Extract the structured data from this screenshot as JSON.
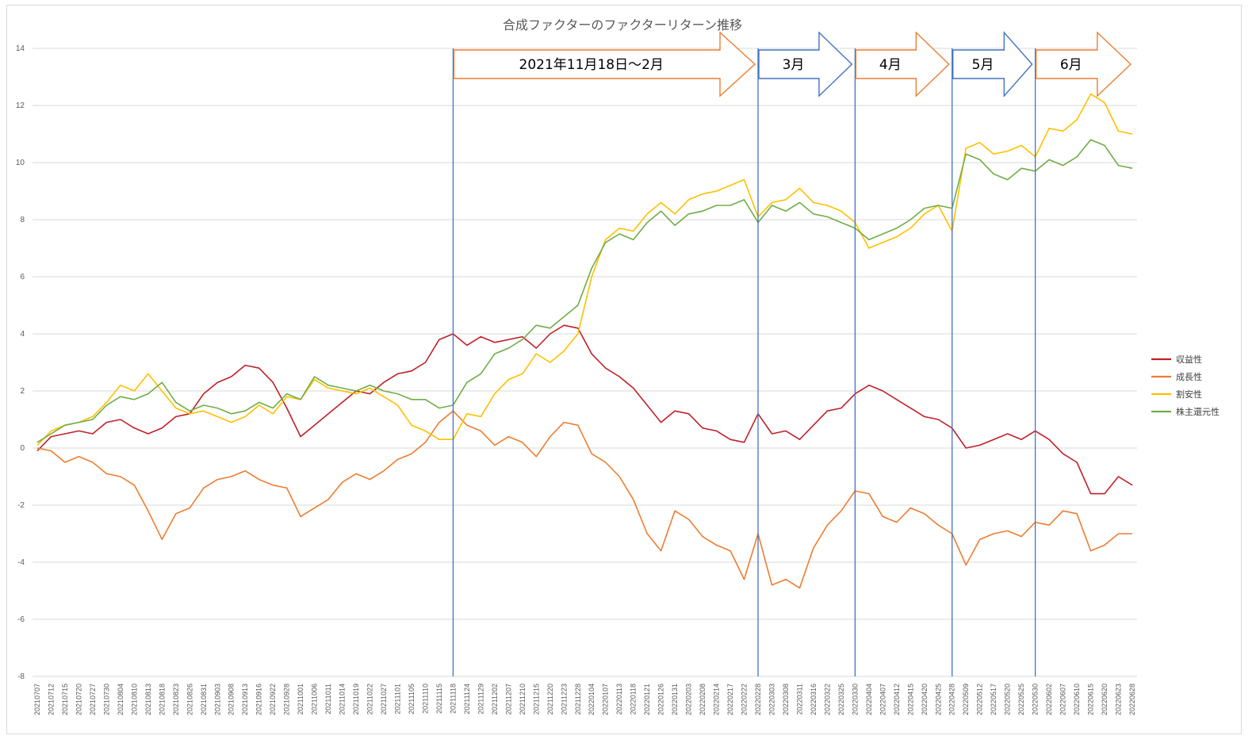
{
  "chart_data": {
    "type": "line",
    "title": "合成ファクターのファクターリターン推移",
    "xlabel": "",
    "ylabel": "",
    "ylim": [
      -8,
      14
    ],
    "yticks": [
      "14",
      "12",
      "10",
      "8",
      "6",
      "4",
      "2",
      "0",
      "-2",
      "-4",
      "-6",
      "-8"
    ],
    "grid": true,
    "legend_position": "right",
    "x_tick_labels": [
      "20210707",
      "20210712",
      "20210715",
      "20210720",
      "20210727",
      "20210730",
      "20210804",
      "20210810",
      "20210813",
      "20210818",
      "20210823",
      "20210826",
      "20210831",
      "20210903",
      "20210908",
      "20210913",
      "20210916",
      "20210922",
      "20210928",
      "20211001",
      "20211006",
      "20211011",
      "20211014",
      "20211019",
      "20211022",
      "20211027",
      "20211101",
      "20211105",
      "20211110",
      "20211115",
      "20211118",
      "20211124",
      "20211129",
      "20211202",
      "20211207",
      "20211210",
      "20211215",
      "20211220",
      "20211223",
      "20211228",
      "20220104",
      "20220107",
      "20220113",
      "20220118",
      "20220121",
      "20220126",
      "20220131",
      "20220203",
      "20220208",
      "20220214",
      "20220217",
      "20220222",
      "20220228",
      "20220303",
      "20220308",
      "20220311",
      "20220316",
      "20220322",
      "20220325",
      "20220330",
      "20220404",
      "20220407",
      "20220412",
      "20220415",
      "20220420",
      "20220425",
      "20220428",
      "20220509",
      "20220512",
      "20220517",
      "20220520",
      "20220525",
      "20220530",
      "20220602",
      "20220607",
      "20220610",
      "20220615",
      "20220620",
      "20220623",
      "20220628"
    ],
    "series": [
      {
        "name": "収益性",
        "color": "#c0202a",
        "values": [
          -0.1,
          0.4,
          0.5,
          0.6,
          0.5,
          0.9,
          1.0,
          0.7,
          0.5,
          0.7,
          1.1,
          1.2,
          1.9,
          2.3,
          2.5,
          2.9,
          2.8,
          2.3,
          1.4,
          0.4,
          0.8,
          1.2,
          1.6,
          2.0,
          1.9,
          2.3,
          2.6,
          2.7,
          3.0,
          3.8,
          4.0,
          3.6,
          3.9,
          3.7,
          3.8,
          3.9,
          3.5,
          4.0,
          4.3,
          4.2,
          3.3,
          2.8,
          2.5,
          2.1,
          1.5,
          0.9,
          1.3,
          1.2,
          0.7,
          0.6,
          0.3,
          0.2,
          1.2,
          0.5,
          0.6,
          0.3,
          0.8,
          1.3,
          1.4,
          1.9,
          2.2,
          2.0,
          1.7,
          1.4,
          1.1,
          1.0,
          0.7,
          0.0,
          0.1,
          0.3,
          0.5,
          0.3,
          0.6,
          0.3,
          -0.2,
          -0.5,
          -1.6,
          -1.6,
          -1.0,
          -1.3
        ]
      },
      {
        "name": "成長性",
        "color": "#ed7d31",
        "values": [
          0.0,
          -0.1,
          -0.5,
          -0.3,
          -0.5,
          -0.9,
          -1.0,
          -1.3,
          -2.2,
          -3.2,
          -2.3,
          -2.1,
          -1.4,
          -1.1,
          -1.0,
          -0.8,
          -1.1,
          -1.3,
          -1.4,
          -2.4,
          -2.1,
          -1.8,
          -1.2,
          -0.9,
          -1.1,
          -0.8,
          -0.4,
          -0.2,
          0.2,
          0.9,
          1.3,
          0.8,
          0.6,
          0.1,
          0.4,
          0.2,
          -0.3,
          0.4,
          0.9,
          0.8,
          -0.2,
          -0.5,
          -1.0,
          -1.8,
          -3.0,
          -3.6,
          -2.2,
          -2.5,
          -3.1,
          -3.4,
          -3.6,
          -4.6,
          -3.0,
          -4.8,
          -4.6,
          -4.9,
          -3.5,
          -2.7,
          -2.2,
          -1.5,
          -1.6,
          -2.4,
          -2.6,
          -2.1,
          -2.3,
          -2.7,
          -3.0,
          -4.1,
          -3.2,
          -3.0,
          -2.9,
          -3.1,
          -2.6,
          -2.7,
          -2.2,
          -2.3,
          -3.6,
          -3.4,
          -3.0,
          -3.0
        ]
      },
      {
        "name": "割安性",
        "color": "#ffc000",
        "values": [
          0.1,
          0.6,
          0.8,
          0.9,
          1.1,
          1.6,
          2.2,
          2.0,
          2.6,
          2.0,
          1.4,
          1.2,
          1.3,
          1.1,
          0.9,
          1.1,
          1.5,
          1.2,
          1.8,
          1.7,
          2.4,
          2.1,
          2.0,
          1.9,
          2.1,
          1.8,
          1.5,
          0.8,
          0.6,
          0.3,
          0.3,
          1.2,
          1.1,
          1.9,
          2.4,
          2.6,
          3.3,
          3.0,
          3.4,
          4.0,
          6.0,
          7.3,
          7.7,
          7.6,
          8.2,
          8.6,
          8.2,
          8.7,
          8.9,
          9.0,
          9.2,
          9.4,
          8.1,
          8.6,
          8.7,
          9.1,
          8.6,
          8.5,
          8.3,
          7.9,
          7.0,
          7.2,
          7.4,
          7.7,
          8.2,
          8.5,
          7.6,
          10.5,
          10.7,
          10.3,
          10.4,
          10.6,
          10.2,
          11.2,
          11.1,
          11.5,
          12.4,
          12.1,
          11.1,
          11.0
        ]
      },
      {
        "name": "株主還元性",
        "color": "#70ad47",
        "values": [
          0.2,
          0.5,
          0.8,
          0.9,
          1.0,
          1.5,
          1.8,
          1.7,
          1.9,
          2.3,
          1.6,
          1.3,
          1.5,
          1.4,
          1.2,
          1.3,
          1.6,
          1.4,
          1.9,
          1.7,
          2.5,
          2.2,
          2.1,
          2.0,
          2.2,
          2.0,
          1.9,
          1.7,
          1.7,
          1.4,
          1.5,
          2.3,
          2.6,
          3.3,
          3.5,
          3.8,
          4.3,
          4.2,
          4.6,
          5.0,
          6.3,
          7.2,
          7.5,
          7.3,
          7.9,
          8.3,
          7.8,
          8.2,
          8.3,
          8.5,
          8.5,
          8.7,
          7.9,
          8.5,
          8.3,
          8.6,
          8.2,
          8.1,
          7.9,
          7.7,
          7.3,
          7.5,
          7.7,
          8.0,
          8.4,
          8.5,
          8.4,
          10.3,
          10.1,
          9.6,
          9.4,
          9.8,
          9.7,
          10.1,
          9.9,
          10.2,
          10.8,
          10.6,
          9.9,
          9.8
        ]
      }
    ],
    "period_markers": [
      {
        "label": "2021年11月18日～2月",
        "date": "20211118",
        "outline": "#ed7d31"
      },
      {
        "label": "3月",
        "date": "20220228",
        "outline": "#4472c4"
      },
      {
        "label": "4月",
        "date": "20220330",
        "outline": "#ed7d31"
      },
      {
        "label": "5月",
        "date": "20220428",
        "outline": "#4472c4"
      },
      {
        "label": "6月",
        "date": "20220530",
        "outline": "#ed7d31"
      }
    ],
    "marker_line_color": "#4472c4"
  }
}
